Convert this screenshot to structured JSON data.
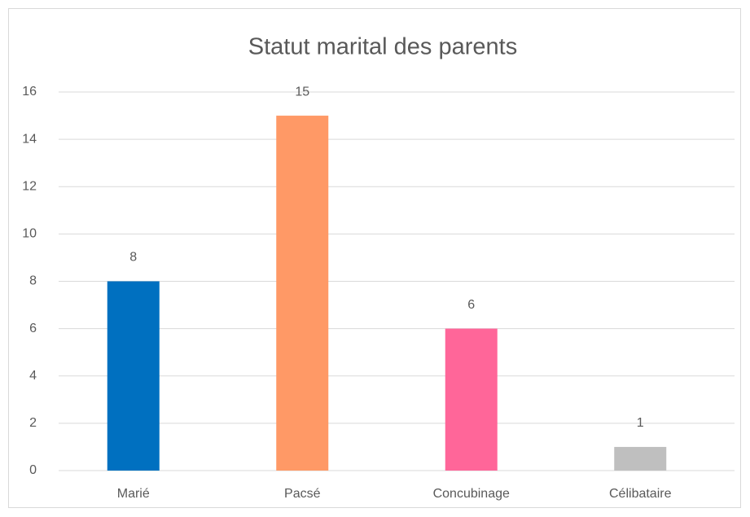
{
  "chart_data": {
    "type": "bar",
    "title": "Statut marital des parents",
    "categories": [
      "Marié",
      "Pacsé",
      "Concubinage",
      "Célibataire"
    ],
    "values": [
      8,
      15,
      6,
      1
    ],
    "colors": [
      "#0070c0",
      "#ff9966",
      "#ff6699",
      "#bfbfbf"
    ],
    "ylim": [
      0,
      16
    ],
    "yticks": [
      0,
      2,
      4,
      6,
      8,
      10,
      12,
      14,
      16
    ],
    "grid": true
  }
}
